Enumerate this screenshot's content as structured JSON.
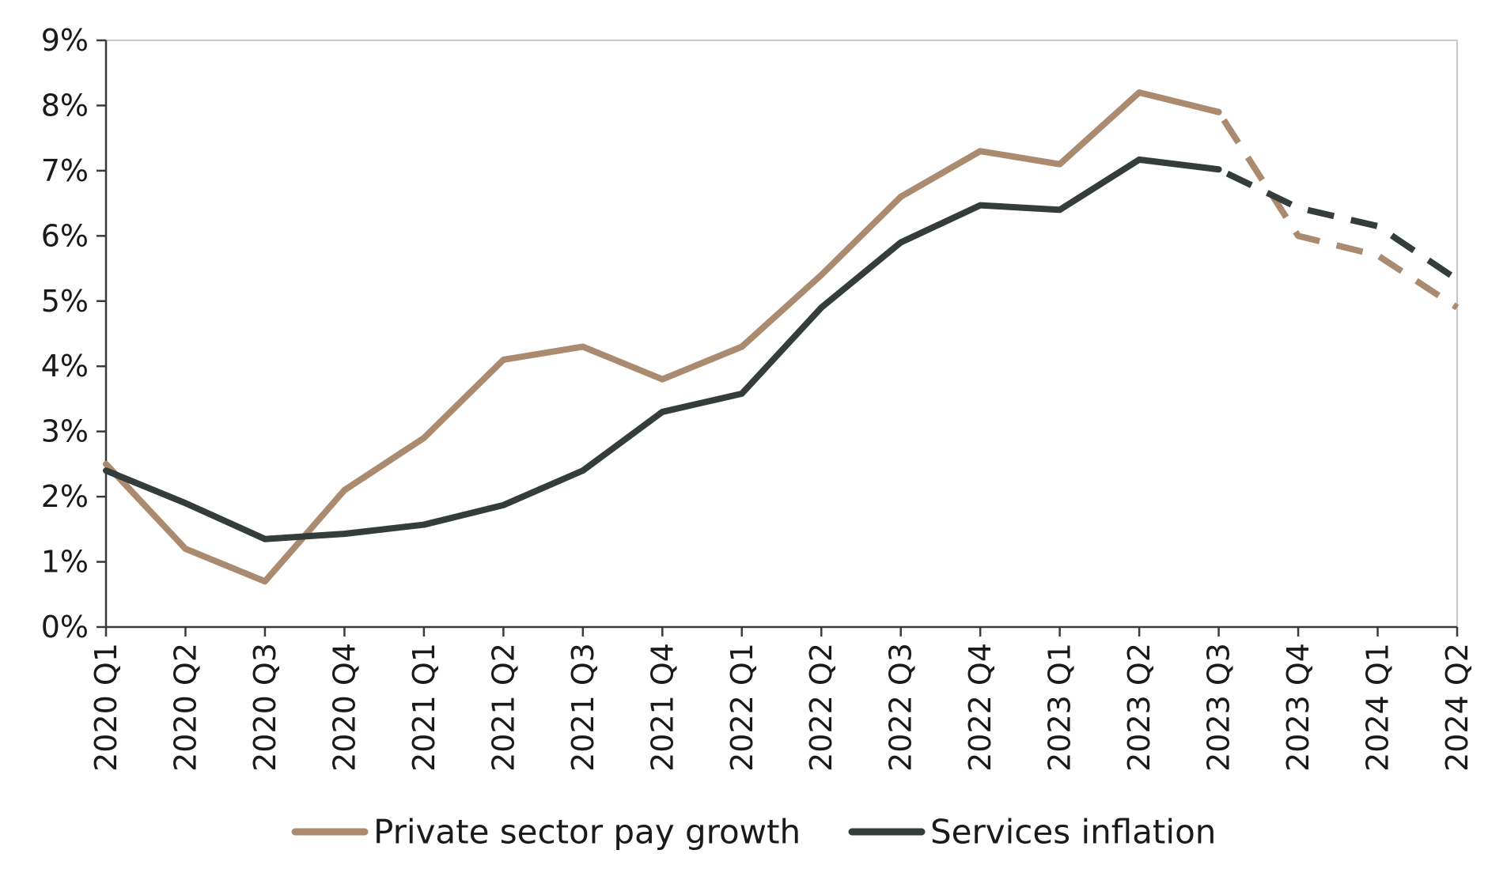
{
  "chart_data": {
    "type": "line",
    "title": "",
    "xlabel": "",
    "ylabel": "",
    "categories": [
      "2020 Q1",
      "2020 Q2",
      "2020 Q3",
      "2020 Q4",
      "2021 Q1",
      "2021 Q2",
      "2021 Q3",
      "2021 Q4",
      "2022 Q1",
      "2022 Q2",
      "2022 Q3",
      "2022 Q4",
      "2023 Q1",
      "2023 Q2",
      "2023 Q3",
      "2023 Q4",
      "2024 Q1",
      "2024 Q2"
    ],
    "ylim": [
      0,
      9
    ],
    "yticks": [
      0,
      1,
      2,
      3,
      4,
      5,
      6,
      7,
      8,
      9
    ],
    "ytick_labels": [
      "0%",
      "1%",
      "2%",
      "3%",
      "4%",
      "5%",
      "6%",
      "7%",
      "8%",
      "9%"
    ],
    "grid": false,
    "forecast_start_index": 14,
    "legend_position": "bottom",
    "series": [
      {
        "name": "Private sector pay growth",
        "color": "#ab8b6f",
        "values": [
          2.5,
          1.2,
          0.7,
          2.1,
          2.9,
          4.1,
          4.3,
          3.8,
          4.3,
          5.4,
          6.6,
          7.3,
          7.1,
          8.2,
          7.9,
          6.0,
          5.7,
          4.9
        ]
      },
      {
        "name": "Services inflation",
        "color": "#343c3c",
        "values": [
          2.4,
          1.9,
          1.35,
          1.43,
          1.57,
          1.87,
          2.4,
          3.3,
          3.58,
          4.9,
          5.9,
          6.47,
          6.4,
          7.17,
          7.02,
          6.43,
          6.15,
          5.33
        ]
      }
    ]
  }
}
